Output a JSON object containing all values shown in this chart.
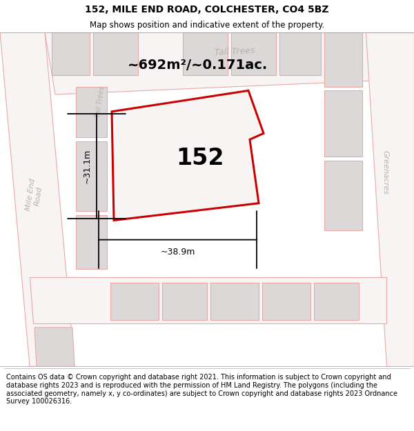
{
  "title": "152, MILE END ROAD, COLCHESTER, CO4 5BZ",
  "subtitle": "Map shows position and indicative extent of the property.",
  "footer": "Contains OS data © Crown copyright and database right 2021. This information is subject to Crown copyright and database rights 2023 and is reproduced with the permission of HM Land Registry. The polygons (including the associated geometry, namely x, y co-ordinates) are subject to Crown copyright and database rights 2023 Ordnance Survey 100026316.",
  "area_label": "~692m²/~0.171ac.",
  "number_label": "152",
  "width_label": "~38.9m",
  "height_label": "~31.1m",
  "map_bg": "#ede8e8",
  "road_fill": "#f8f4f4",
  "bld_fill": "#ddd8d8",
  "road_edge": "#e8a8a8",
  "bld_edge": "#e8a8a8",
  "plot_edge": "#cc0000",
  "plot_fill": "#f8f4f4",
  "title_fontsize": 10,
  "subtitle_fontsize": 8.5,
  "footer_fontsize": 7.0,
  "area_fontsize": 14,
  "number_fontsize": 24,
  "meas_fontsize": 9,
  "road_label_color": "#b8b0b0",
  "road_label_size": 8
}
